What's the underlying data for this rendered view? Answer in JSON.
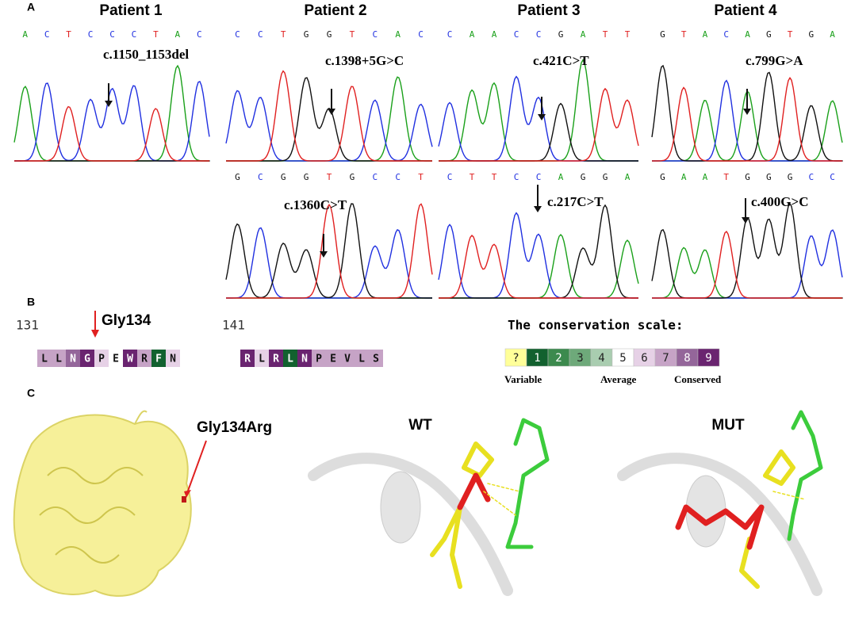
{
  "panel_labels": [
    "A",
    "B",
    "C"
  ],
  "panel_a": {
    "patients": [
      {
        "title": "Patient 1",
        "traces": [
          {
            "bases": [
              "A",
              "C",
              "T",
              "C",
              "C",
              "C",
              "T",
              "A",
              "C"
            ],
            "mutation": "c.1150_1153del"
          }
        ]
      },
      {
        "title": "Patient 2",
        "traces": [
          {
            "bases": [
              "C",
              "C",
              "T",
              "G",
              "G",
              "T",
              "C",
              "A",
              "C"
            ],
            "mutation": "c.1398+5G>C"
          },
          {
            "bases": [
              "G",
              "C",
              "G",
              "G",
              "T",
              "G",
              "C",
              "C",
              "T"
            ],
            "mutation": "c.1360C>T"
          }
        ]
      },
      {
        "title": "Patient 3",
        "traces": [
          {
            "bases": [
              "C",
              "A",
              "A",
              "C",
              "C",
              "G",
              "A",
              "T",
              "T"
            ],
            "mutation": "c.421C>T"
          },
          {
            "bases": [
              "C",
              "T",
              "T",
              "C",
              "C",
              "A",
              "G",
              "G",
              "A"
            ],
            "mutation": "c.217C>T"
          }
        ]
      },
      {
        "title": "Patient 4",
        "traces": [
          {
            "bases": [
              "G",
              "T",
              "A",
              "C",
              "A",
              "G",
              "T",
              "G",
              "A"
            ],
            "mutation": "c.799G>A"
          },
          {
            "bases": [
              "G",
              "A",
              "A",
              "T",
              "G",
              "G",
              "G",
              "C",
              "C"
            ],
            "mutation": "c.400G>C"
          }
        ]
      }
    ]
  },
  "panel_b": {
    "site_label": "Gly134",
    "segments": [
      {
        "start": "131",
        "residues": [
          "L",
          "L",
          "N",
          "G",
          "P",
          "E",
          "W",
          "R",
          "F",
          "N"
        ],
        "scores": [
          7,
          7,
          8,
          9,
          6,
          5,
          9,
          7,
          1,
          6
        ]
      },
      {
        "start": "141",
        "residues": [
          "R",
          "L",
          "R",
          "L",
          "N",
          "P",
          "E",
          "V",
          "L",
          "S"
        ],
        "scores": [
          9,
          6,
          9,
          1,
          9,
          7,
          7,
          7,
          7,
          7
        ]
      }
    ],
    "scale_title": "The conservation scale:",
    "scale": [
      {
        "label": "?",
        "color": "#ffff99"
      },
      {
        "label": 1,
        "color": "#12612f"
      },
      {
        "label": 2,
        "color": "#3c8a4e"
      },
      {
        "label": 3,
        "color": "#6ea97a"
      },
      {
        "label": 4,
        "color": "#a9cdb0"
      },
      {
        "label": 5,
        "color": "#ffffff"
      },
      {
        "label": 6,
        "color": "#e6d1e6"
      },
      {
        "label": 7,
        "color": "#c6a3c6"
      },
      {
        "label": 8,
        "color": "#94669a"
      },
      {
        "label": 9,
        "color": "#6a2470"
      }
    ],
    "scale_labels": [
      "Variable",
      "Average",
      "Conserved"
    ]
  },
  "panel_c": {
    "mutation_label": "Gly134Arg",
    "views": [
      "WT",
      "MUT"
    ]
  }
}
